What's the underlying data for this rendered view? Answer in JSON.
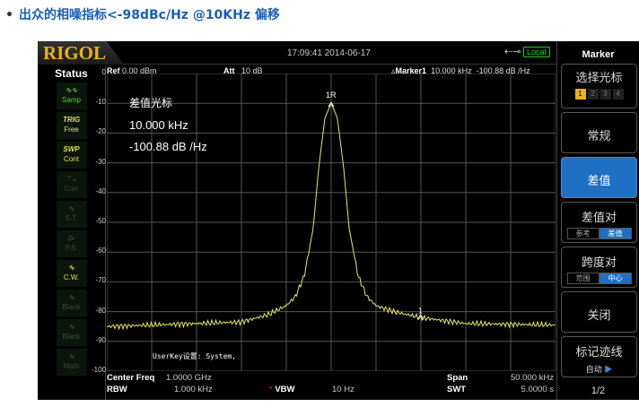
{
  "title": "出众的相噪指标<-98dBc/Hz @10KHz 偏移",
  "instrument": {
    "logo": "RIGOL",
    "datetime": "17:09:41 2014-06-17",
    "local": "Local",
    "status": {
      "title": "Status",
      "items": [
        {
          "l1": "∿∿",
          "l2": "Samp",
          "color": "#55cc33"
        },
        {
          "l1": "TRIG",
          "l2": "Free",
          "color": "#e0e060"
        },
        {
          "l1": "SWP",
          "l2": "Cont",
          "color": "#e0e060"
        },
        {
          "l1": "⌃⌄",
          "l2": "Corr",
          "color": "#3a4a3a"
        },
        {
          "l1": "∿",
          "l2": "S.T.",
          "color": "#3a4a3a"
        },
        {
          "l1": "▷",
          "l2": "P.S.",
          "color": "#3a4a3a"
        },
        {
          "l1": "∿",
          "l2": "C.W.",
          "color": "#e0e030"
        },
        {
          "l1": "∿",
          "l2": "Blank",
          "color": "#3a4a3a"
        },
        {
          "l1": "∿",
          "l2": "Blank",
          "color": "#3a4a3a"
        },
        {
          "l1": "∿",
          "l2": "Math",
          "color": "#3a4a3a"
        }
      ]
    },
    "header": {
      "ref_label": "Ref",
      "ref_value": "0.00 dBm",
      "att_label": "Att",
      "att_value": "10 dB",
      "marker_label": "Marker1",
      "marker_freq": "10.000 kHz",
      "marker_value": "-100.88 dB /Hz"
    },
    "marker_readout": {
      "title": "差值光标",
      "freq": "10.000 kHz",
      "value": "-100.88 dB /Hz"
    },
    "userkey": "UserKey设置:  System,",
    "footer": {
      "center_label": "Center Freq",
      "center_value": "1.0000 GHz",
      "span_label": "Span",
      "span_value": "50.000 kHz",
      "rbw_label": "RBW",
      "rbw_value": "1.000 kHz",
      "vbw_label": "VBW",
      "vbw_value": "10 Hz",
      "swt_label": "SWT",
      "swt_value": "5.0000 s"
    },
    "panel": {
      "title": "Marker",
      "select": "选择光标",
      "markers": [
        "1",
        "2",
        "3",
        "4"
      ],
      "normal": "常规",
      "delta": "差值",
      "delta_pair": "差值对",
      "ref": "参考",
      "diff": "差值",
      "span_pair": "跨度对",
      "range": "范围",
      "center": "中心",
      "off": "关闭",
      "trace": "标记迹线",
      "auto": "自动",
      "page": "1/2"
    }
  },
  "chart_data": {
    "type": "line",
    "ylim": [
      -100,
      0
    ],
    "yticks": [
      "0",
      "-10",
      "-20",
      "-30",
      "-40",
      "-50",
      "-60",
      "-70",
      "-80",
      "-90",
      "-100"
    ],
    "xlim_mhz": [
      999.975,
      1000.025
    ],
    "grid": true,
    "trace_color": "#e8e860",
    "x_mhz": [
      999.975,
      999.985,
      999.99,
      999.993,
      999.995,
      999.996,
      999.997,
      999.998,
      999.9986,
      999.9993,
      1000.0,
      1000.0007,
      1000.0014,
      1000.002,
      1000.003,
      1000.004,
      1000.005,
      1000.007,
      1000.01,
      1000.015,
      1000.025
    ],
    "y_dbm": [
      -85,
      -84,
      -83.5,
      -81,
      -78,
      -75,
      -68,
      -52,
      -32,
      -15,
      -10,
      -15,
      -32,
      -52,
      -68,
      -75,
      -78,
      -80,
      -82,
      -84,
      -84.5
    ],
    "markers": [
      {
        "label": "1R",
        "x_mhz": 1000.0,
        "y_dbm": -10
      },
      {
        "label": "1",
        "x_mhz": 1000.01,
        "y_dbm": -81.5
      }
    ]
  }
}
